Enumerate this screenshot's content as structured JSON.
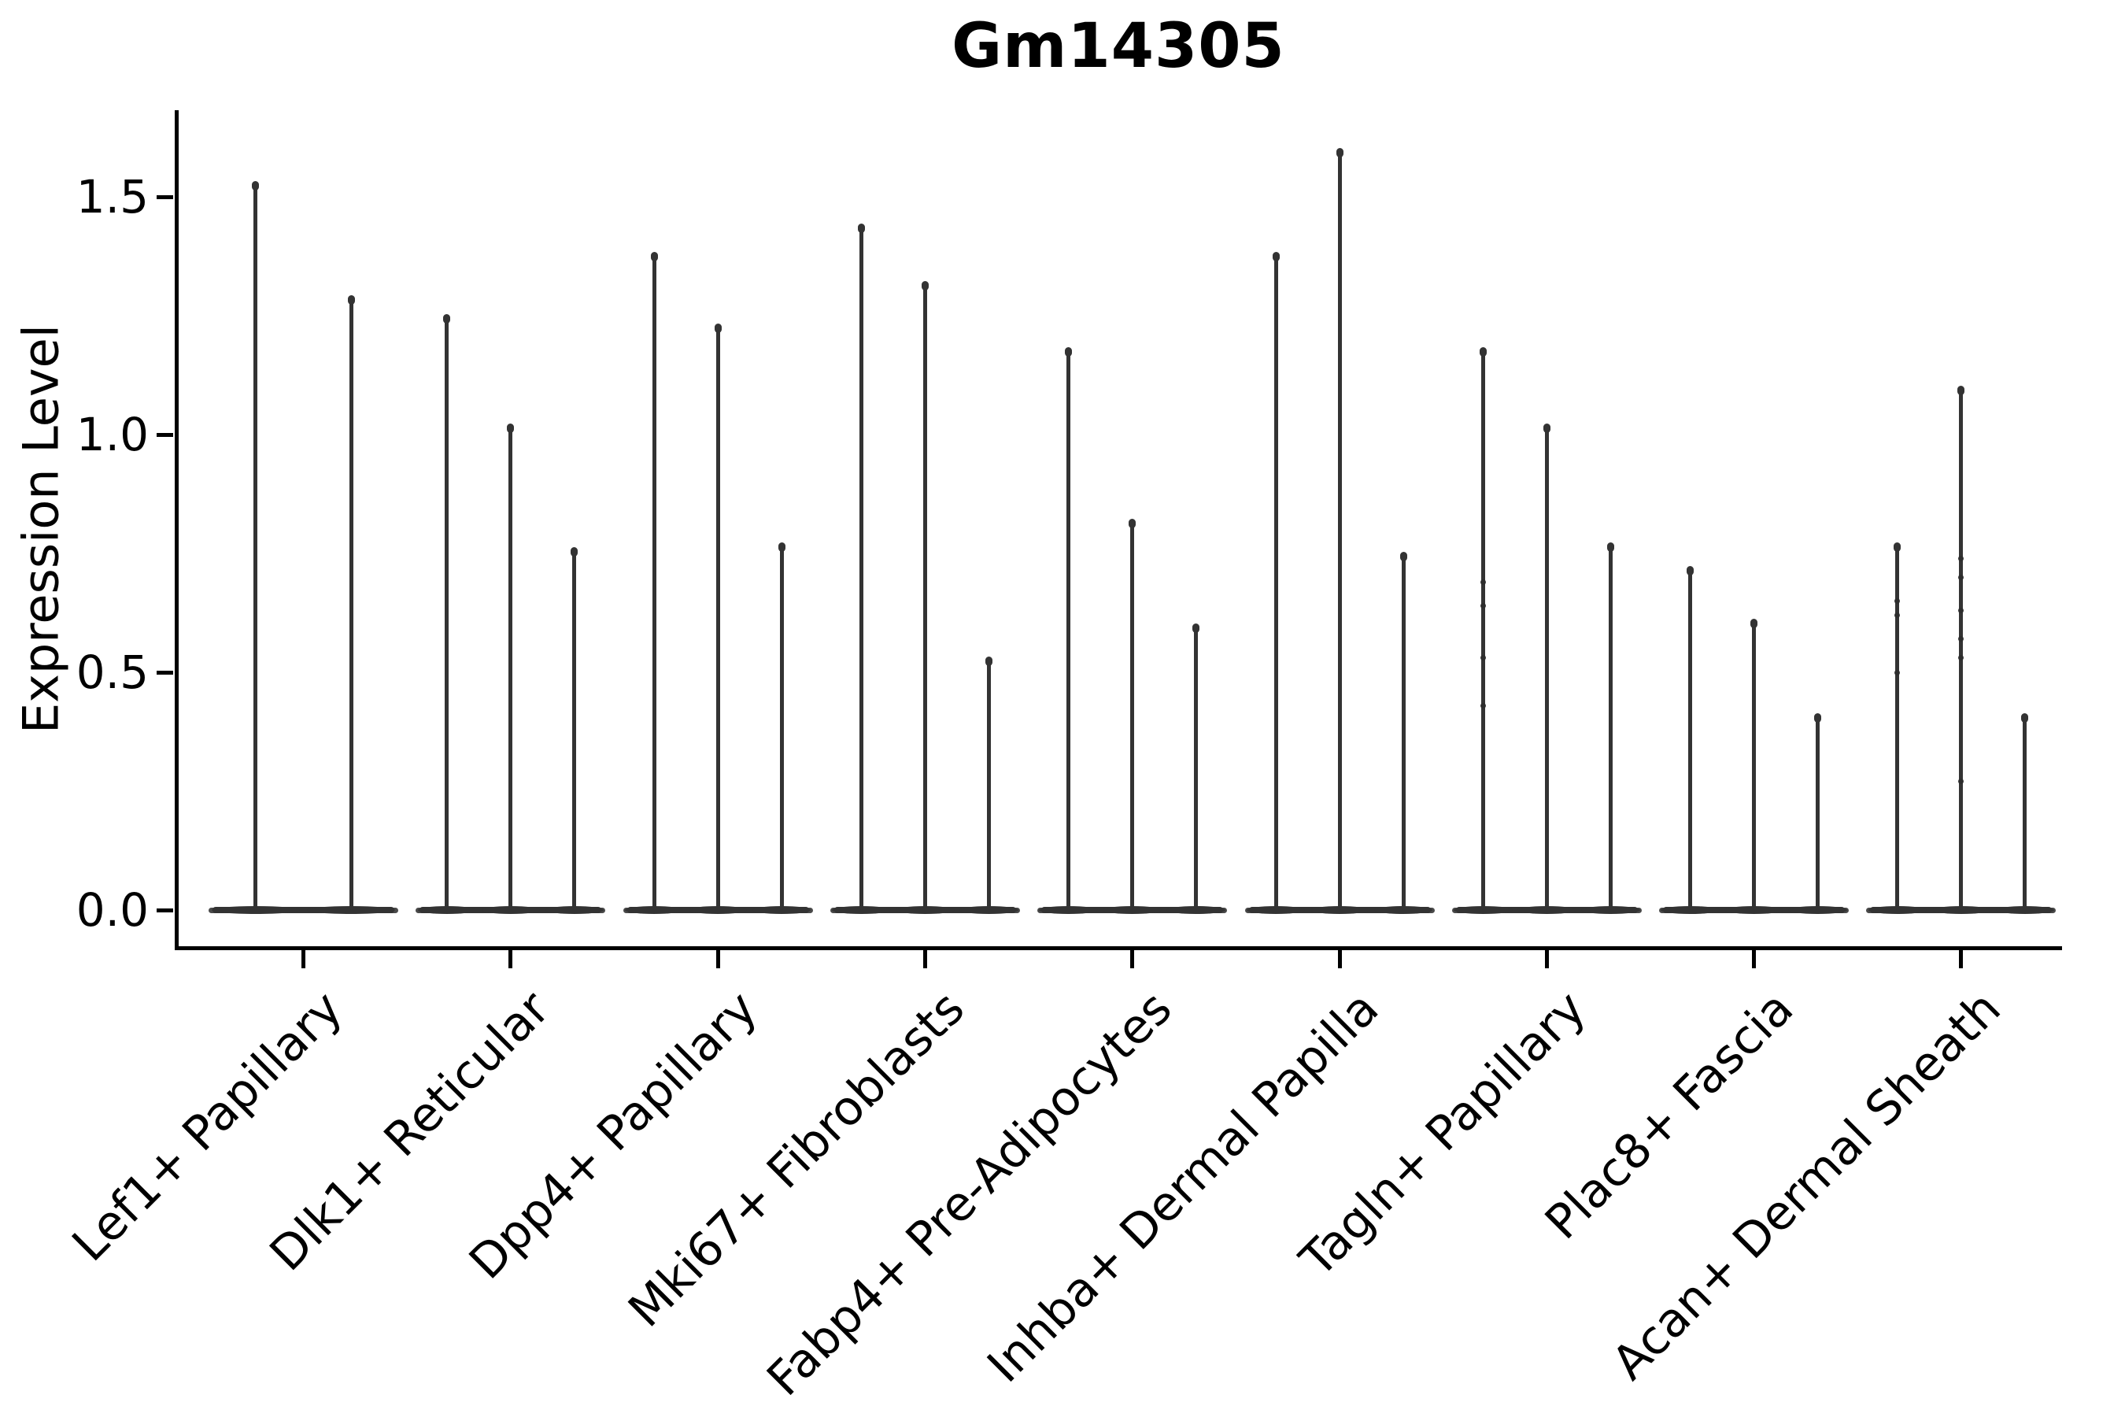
{
  "title": "Gm14305",
  "ylabel": "Expression Level",
  "colors": {
    "violin": "#333333",
    "violin_base_tip": "#4a4a4a",
    "jitter_point": "#2d2d2d",
    "axis": "#000000",
    "background": "#ffffff",
    "text": "#000000"
  },
  "chart_data": {
    "type": "violin",
    "title": "Gm14305",
    "xlabel": "",
    "ylabel": "Expression Level",
    "ylim": [
      0,
      1.68
    ],
    "grid": false,
    "legend": "none",
    "spines": [
      "left",
      "bottom"
    ],
    "yticks": [
      {
        "label": "0.0",
        "value": 0.0
      },
      {
        "label": "0.5",
        "value": 0.5
      },
      {
        "label": "1.0",
        "value": 1.0
      },
      {
        "label": "1.5",
        "value": 1.5
      }
    ],
    "x_tick_rotation_deg": 45,
    "description": "Needle-shaped violins: expression density is concentrated at 0 (flat wide base) with a thin tail extending up to the maximum expression value per violin.",
    "groups": [
      {
        "label": "Lef1+ Papillary",
        "violins": [
          {
            "max_expression": 1.53,
            "points": []
          },
          {
            "max_expression": 1.29,
            "points": []
          }
        ]
      },
      {
        "label": "Dlk1+ Reticular",
        "violins": [
          {
            "max_expression": 1.25,
            "points": []
          },
          {
            "max_expression": 1.02,
            "points": []
          },
          {
            "max_expression": 0.76,
            "points": []
          }
        ]
      },
      {
        "label": "Dpp4+ Papillary",
        "violins": [
          {
            "max_expression": 1.38,
            "points": []
          },
          {
            "max_expression": 1.23,
            "points": []
          },
          {
            "max_expression": 0.77,
            "points": []
          }
        ]
      },
      {
        "label": "Mki67+ Fibroblasts",
        "violins": [
          {
            "max_expression": 1.44,
            "points": []
          },
          {
            "max_expression": 1.32,
            "points": []
          },
          {
            "max_expression": 0.53,
            "points": []
          }
        ]
      },
      {
        "label": "Fabp4+ Pre-Adipocytes",
        "violins": [
          {
            "max_expression": 1.18,
            "points": []
          },
          {
            "max_expression": 0.82,
            "points": []
          },
          {
            "max_expression": 0.6,
            "points": []
          }
        ]
      },
      {
        "label": "Inhba+ Dermal Papilla",
        "violins": [
          {
            "max_expression": 1.38,
            "points": []
          },
          {
            "max_expression": 1.6,
            "points": []
          },
          {
            "max_expression": 0.75,
            "points": []
          }
        ]
      },
      {
        "label": "Tagln+ Papillary",
        "violins": [
          {
            "max_expression": 1.18,
            "points": [
              0.69,
              0.64,
              0.53,
              0.43
            ]
          },
          {
            "max_expression": 1.02,
            "points": []
          },
          {
            "max_expression": 0.77,
            "points": []
          }
        ]
      },
      {
        "label": "Plac8+ Fascia",
        "violins": [
          {
            "max_expression": 0.72,
            "points": []
          },
          {
            "max_expression": 0.61,
            "points": []
          },
          {
            "max_expression": 0.41,
            "points": []
          }
        ]
      },
      {
        "label": "Acan+ Dermal Sheath",
        "violins": [
          {
            "max_expression": 0.77,
            "points": [
              0.65,
              0.62,
              0.5
            ]
          },
          {
            "max_expression": 1.1,
            "points": [
              0.74,
              0.7,
              0.63,
              0.57,
              0.53,
              0.27
            ]
          },
          {
            "max_expression": 0.41,
            "points": []
          }
        ]
      }
    ]
  }
}
